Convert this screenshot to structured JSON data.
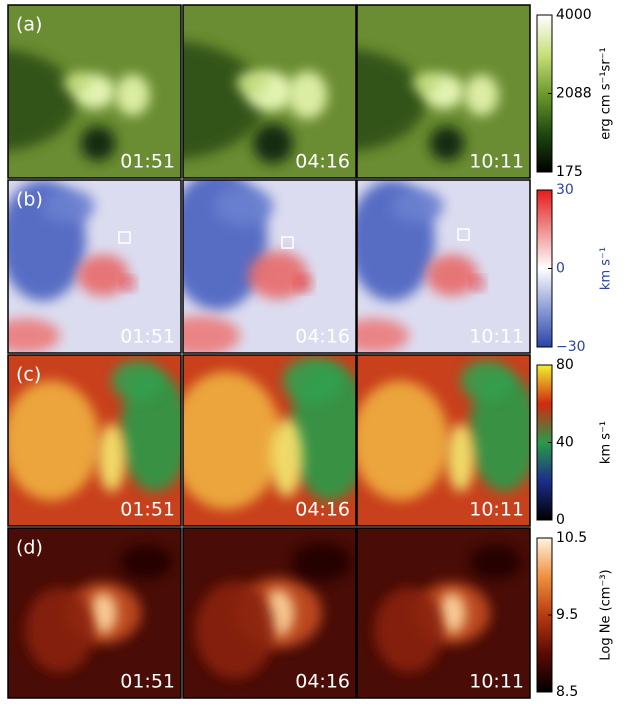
{
  "rows": [
    {
      "label": "(a)",
      "times": [
        "01:51",
        "04:16",
        "10:11"
      ],
      "colorbar": {
        "title": "erg cm s⁻¹sr⁻¹",
        "lim": [
          175,
          4000
        ],
        "ticks": [
          175,
          2088,
          4000
        ],
        "colors": [
          "#000000",
          "#1f4a10",
          "#6e9a2c",
          "#c8e07a",
          "#ffffff"
        ]
      }
    },
    {
      "label": "(b)",
      "times": [
        "01:51",
        "04:16",
        "10:11"
      ],
      "colorbar": {
        "title": "km s⁻¹",
        "lim": [
          -30,
          30
        ],
        "ticks": [
          {
            "value": -30,
            "label": "−30"
          },
          0,
          30
        ],
        "colors": [
          "#2a44a8",
          "#8f9fd8",
          "#ffffff",
          "#ef8f8f",
          "#e81a1a"
        ]
      }
    },
    {
      "label": "(c)",
      "times": [
        "01:51",
        "04:16",
        "10:11"
      ],
      "colorbar": {
        "title": "km s⁻¹",
        "lim": [
          0,
          80
        ],
        "ticks": [
          0,
          40,
          80
        ],
        "colors": [
          "#000000",
          "#1c2c8a",
          "#2a9a4a",
          "#d02a10",
          "#f4f030"
        ]
      }
    },
    {
      "label": "(d)",
      "times": [
        "01:51",
        "04:16",
        "10:11"
      ],
      "colorbar": {
        "title": "Log Ne (cm⁻³)",
        "lim": [
          8.5,
          10.5
        ],
        "ticks": [
          8.5,
          9.5,
          10.5
        ],
        "colors": [
          "#000000",
          "#5a0a04",
          "#b83a10",
          "#f09040",
          "#fff4e0"
        ]
      }
    }
  ]
}
